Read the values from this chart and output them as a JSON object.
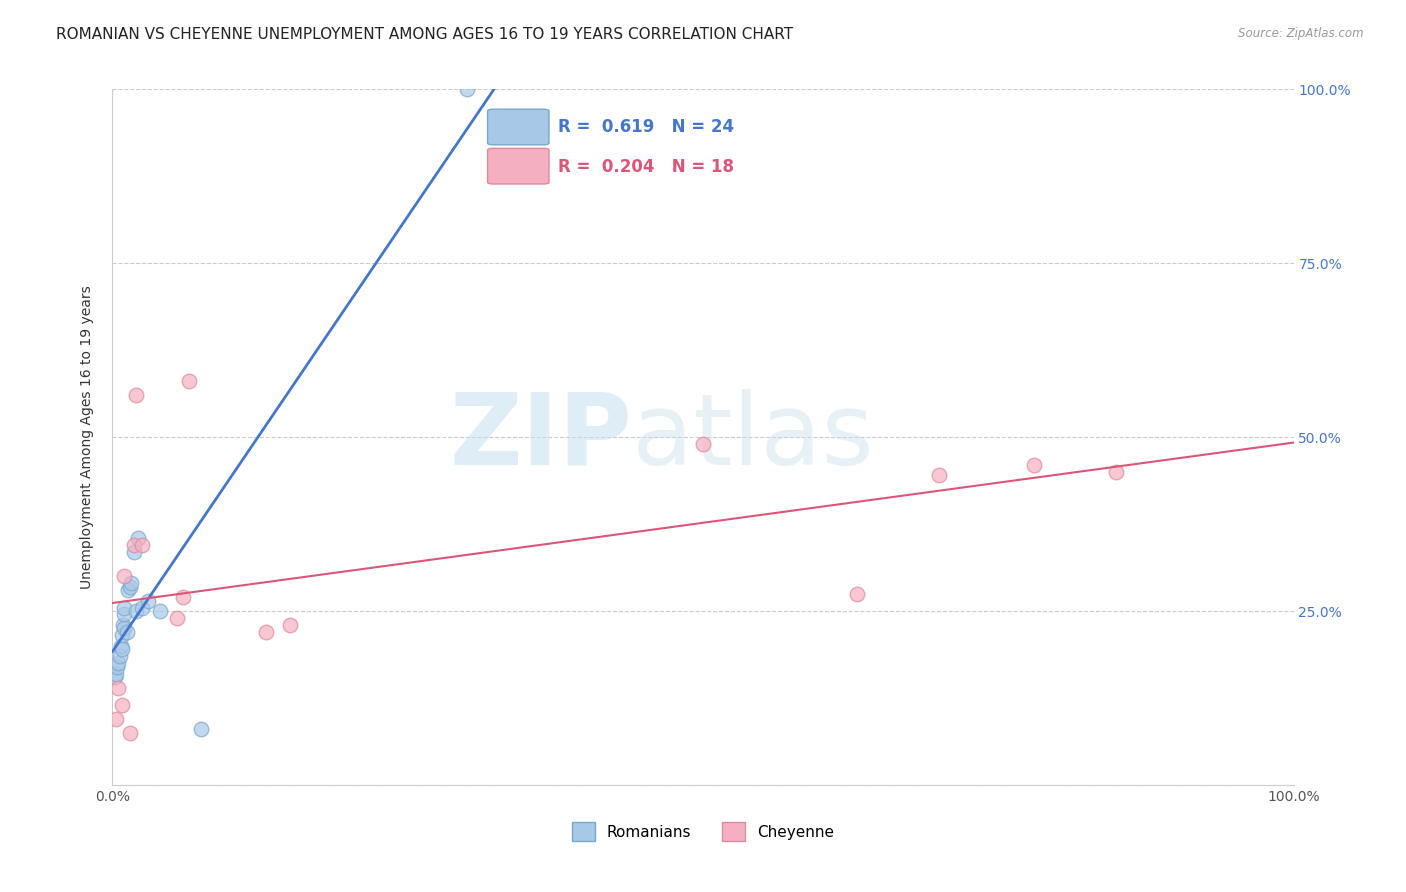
{
  "title": "ROMANIAN VS CHEYENNE UNEMPLOYMENT AMONG AGES 16 TO 19 YEARS CORRELATION CHART",
  "source": "Source: ZipAtlas.com",
  "ylabel": "Unemployment Among Ages 16 to 19 years",
  "xlim": [
    0.0,
    1.0
  ],
  "ylim": [
    0.0,
    1.0
  ],
  "xticks": [
    0.0,
    0.25,
    0.5,
    0.75,
    1.0
  ],
  "yticks": [
    0.0,
    0.25,
    0.5,
    0.75,
    1.0
  ],
  "xticklabels": [
    "0.0%",
    "",
    "",
    "",
    "100.0%"
  ],
  "right_yticklabels": [
    "",
    "25.0%",
    "50.0%",
    "75.0%",
    "100.0%"
  ],
  "romanian_color": "#a8c8e8",
  "cheyenne_color": "#f4b0c0",
  "romanian_edge": "#7aa8cc",
  "cheyenne_edge": "#e088a0",
  "trend_blue": "#4477cc",
  "trend_pink": "#dd5577",
  "watermark_zip": "ZIP",
  "watermark_atlas": "atlas",
  "legend_R1": "0.619",
  "legend_N1": "24",
  "legend_R2": "0.204",
  "legend_N2": "18",
  "romanian_x": [
    0.002,
    0.003,
    0.004,
    0.005,
    0.006,
    0.007,
    0.008,
    0.008,
    0.009,
    0.01,
    0.01,
    0.01,
    0.012,
    0.013,
    0.015,
    0.016,
    0.018,
    0.02,
    0.022,
    0.025,
    0.03,
    0.04,
    0.075,
    0.3
  ],
  "romanian_y": [
    0.155,
    0.16,
    0.17,
    0.175,
    0.185,
    0.2,
    0.195,
    0.215,
    0.23,
    0.225,
    0.245,
    0.255,
    0.22,
    0.28,
    0.285,
    0.29,
    0.335,
    0.25,
    0.355,
    0.255,
    0.265,
    0.25,
    0.08,
    1.0
  ],
  "cheyenne_x": [
    0.003,
    0.005,
    0.008,
    0.01,
    0.015,
    0.018,
    0.02,
    0.025,
    0.055,
    0.06,
    0.065,
    0.13,
    0.15,
    0.5,
    0.63,
    0.7,
    0.78,
    0.85
  ],
  "cheyenne_y": [
    0.095,
    0.14,
    0.115,
    0.3,
    0.075,
    0.345,
    0.56,
    0.345,
    0.24,
    0.27,
    0.58,
    0.22,
    0.23,
    0.49,
    0.275,
    0.445,
    0.46,
    0.45
  ],
  "background_color": "#ffffff",
  "grid_color": "#cccccc",
  "title_fontsize": 11,
  "axis_label_fontsize": 10,
  "tick_fontsize": 10,
  "marker_size": 110
}
